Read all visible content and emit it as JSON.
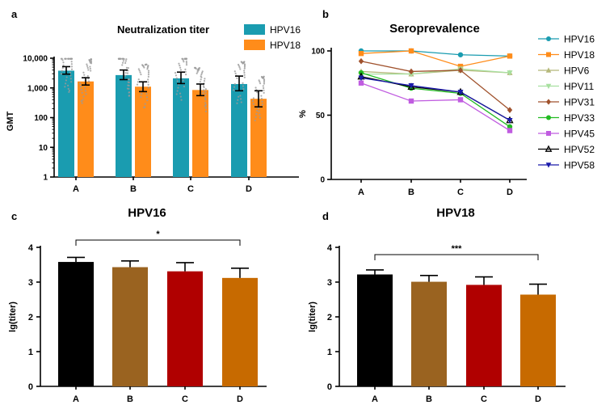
{
  "chart_data": [
    {
      "panel": "a",
      "type": "bar",
      "title": "Neutralization titer",
      "ylabel": "GMT",
      "yscale": "log",
      "ylim": [
        1,
        10000
      ],
      "yticks": [
        "1",
        "10",
        "100",
        "1,000",
        "10,000"
      ],
      "categories": [
        "A",
        "B",
        "C",
        "D"
      ],
      "legend_position": "top-right",
      "series": [
        {
          "name": "HPV16",
          "color": "#1a9cb0",
          "values": [
            3800,
            2700,
            2100,
            1350
          ],
          "err_low": [
            2900,
            1900,
            1400,
            800
          ],
          "err_high": [
            5200,
            4000,
            3400,
            2500
          ]
        },
        {
          "name": "HPV18",
          "color": "#ff8c1a",
          "values": [
            1650,
            1100,
            850,
            430
          ],
          "err_low": [
            1250,
            750,
            550,
            230
          ],
          "err_high": [
            2200,
            1600,
            1350,
            800
          ]
        }
      ]
    },
    {
      "panel": "b",
      "type": "line",
      "title": "Seroprevalence",
      "ylabel": "%",
      "ylim": [
        0,
        100
      ],
      "yticks": [
        "0",
        "50",
        "100"
      ],
      "categories": [
        "A",
        "B",
        "C",
        "D"
      ],
      "legend_position": "right",
      "series": [
        {
          "name": "HPV16",
          "color": "#1a9cb0",
          "marker": "circle",
          "values": [
            100,
            100,
            97,
            96
          ]
        },
        {
          "name": "HPV18",
          "color": "#ff8c1a",
          "marker": "square",
          "values": [
            98,
            100,
            88,
            96
          ]
        },
        {
          "name": "HPV6",
          "color": "#b5b87a",
          "marker": "triangle-up",
          "values": [
            84,
            82,
            85,
            83
          ]
        },
        {
          "name": "HPV11",
          "color": "#a8e0a0",
          "marker": "triangle-down",
          "values": [
            82,
            82,
            86,
            83
          ]
        },
        {
          "name": "HPV31",
          "color": "#a0522d",
          "marker": "diamond",
          "values": [
            92,
            84,
            85,
            54
          ]
        },
        {
          "name": "HPV33",
          "color": "#22bb22",
          "marker": "circle",
          "values": [
            83,
            71,
            67,
            41
          ]
        },
        {
          "name": "HPV45",
          "color": "#c05ce0",
          "marker": "square",
          "values": [
            75,
            61,
            62,
            38
          ]
        },
        {
          "name": "HPV52",
          "color": "#000000",
          "marker": "triangle-up-open",
          "values": [
            80,
            72,
            68,
            46
          ]
        },
        {
          "name": "HPV58",
          "color": "#1a1aaa",
          "marker": "triangle-down",
          "values": [
            79,
            73,
            68,
            46
          ]
        }
      ]
    },
    {
      "panel": "c",
      "type": "bar",
      "title": "HPV16",
      "ylabel": "lg(titer)",
      "ylim": [
        0,
        4
      ],
      "yticks": [
        "0",
        "1",
        "2",
        "3",
        "4"
      ],
      "categories": [
        "A",
        "B",
        "C",
        "D"
      ],
      "colors": [
        "#000000",
        "#9a6320",
        "#b00000",
        "#c76a00"
      ],
      "values": [
        3.58,
        3.43,
        3.31,
        3.12
      ],
      "err": [
        0.13,
        0.18,
        0.25,
        0.28
      ],
      "significance": {
        "from": 0,
        "to": 3,
        "label": "*"
      }
    },
    {
      "panel": "d",
      "type": "bar",
      "title": "HPV18",
      "ylabel": "lg(titer)",
      "ylim": [
        0,
        4
      ],
      "yticks": [
        "0",
        "1",
        "2",
        "3",
        "4"
      ],
      "categories": [
        "A",
        "B",
        "C",
        "D"
      ],
      "colors": [
        "#000000",
        "#9a6320",
        "#b00000",
        "#c76a00"
      ],
      "values": [
        3.22,
        3.01,
        2.92,
        2.64
      ],
      "err": [
        0.13,
        0.18,
        0.23,
        0.3
      ],
      "significance": {
        "from": 0,
        "to": 3,
        "label": "***"
      }
    }
  ]
}
